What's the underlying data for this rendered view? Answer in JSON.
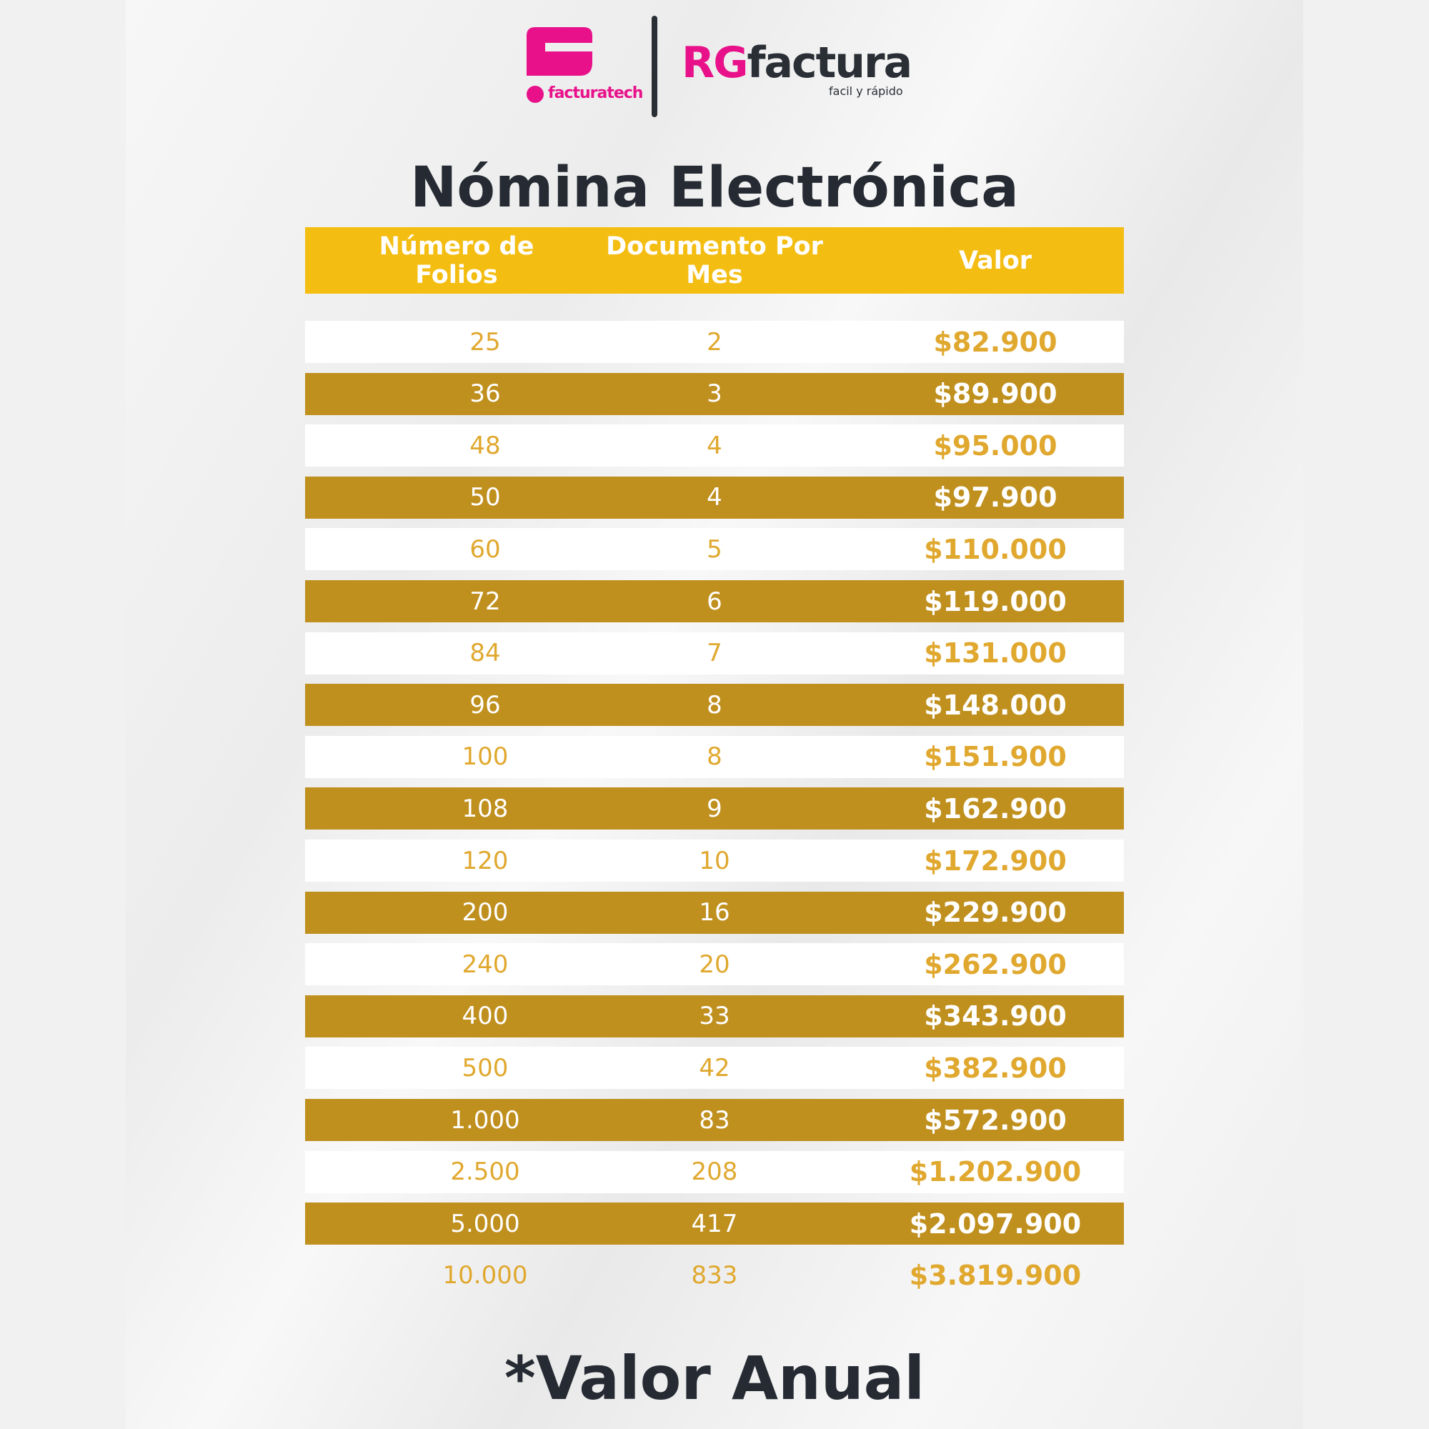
{
  "logos": {
    "facturatech": "facturatech",
    "rgfactura_a": "RG",
    "rgfactura_b": "factura",
    "rgfactura_tagline": "facil y rápido"
  },
  "colors": {
    "header": "#f4bd12",
    "dark_row": "#c0901f",
    "light_text": "#e0a82e",
    "brand_pink": "#e8118a"
  },
  "title": "Nómina Electrónica",
  "table": {
    "headers": [
      "Número de Folios",
      "Documento Por Mes",
      "Valor"
    ],
    "rows": [
      [
        "25",
        "2",
        "$82.900"
      ],
      [
        "36",
        "3",
        "$89.900"
      ],
      [
        "48",
        "4",
        "$95.000"
      ],
      [
        "50",
        "4",
        "$97.900"
      ],
      [
        "60",
        "5",
        "$110.000"
      ],
      [
        "72",
        "6",
        "$119.000"
      ],
      [
        "84",
        "7",
        "$131.000"
      ],
      [
        "96",
        "8",
        "$148.000"
      ],
      [
        "100",
        "8",
        "$151.900"
      ],
      [
        "108",
        "9",
        "$162.900"
      ],
      [
        "120",
        "10",
        "$172.900"
      ],
      [
        "200",
        "16",
        "$229.900"
      ],
      [
        "240",
        "20",
        "$262.900"
      ],
      [
        "400",
        "33",
        "$343.900"
      ],
      [
        "500",
        "42",
        "$382.900"
      ],
      [
        "1.000",
        "83",
        "$572.900"
      ],
      [
        "2.500",
        "208",
        "$1.202.900"
      ],
      [
        "5.000",
        "417",
        "$2.097.900"
      ],
      [
        "10.000",
        "833",
        "$3.819.900"
      ]
    ]
  },
  "footnote": "*Valor Anual"
}
